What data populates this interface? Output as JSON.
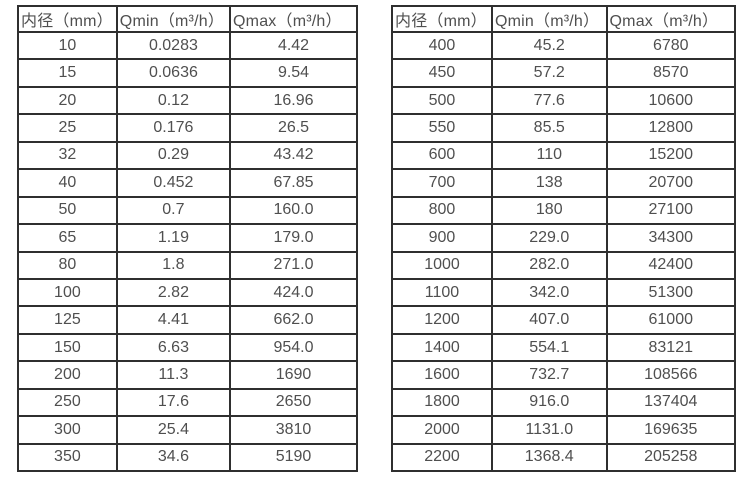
{
  "page": {
    "background": "#ffffff",
    "border_color": "#2f2f2f",
    "text_color": "#4f4f4f"
  },
  "tables": [
    {
      "name": "flow-spec-small-diameters",
      "headers": [
        "内径（mm）",
        "Qmin（m³/h）",
        "Qmax（m³/h）"
      ],
      "rows": [
        [
          "10",
          "0.0283",
          "4.42"
        ],
        [
          "15",
          "0.0636",
          "9.54"
        ],
        [
          "20",
          "0.12",
          "16.96"
        ],
        [
          "25",
          "0.176",
          "26.5"
        ],
        [
          "32",
          "0.29",
          "43.42"
        ],
        [
          "40",
          "0.452",
          "67.85"
        ],
        [
          "50",
          "0.7",
          "160.0"
        ],
        [
          "65",
          "1.19",
          "179.0"
        ],
        [
          "80",
          "1.8",
          "271.0"
        ],
        [
          "100",
          "2.82",
          "424.0"
        ],
        [
          "125",
          "4.41",
          "662.0"
        ],
        [
          "150",
          "6.63",
          "954.0"
        ],
        [
          "200",
          "11.3",
          "1690"
        ],
        [
          "250",
          "17.6",
          "2650"
        ],
        [
          "300",
          "25.4",
          "3810"
        ],
        [
          "350",
          "34.6",
          "5190"
        ]
      ]
    },
    {
      "name": "flow-spec-large-diameters",
      "headers": [
        "内径（mm）",
        "Qmin（m³/h）",
        "Qmax（m³/h）"
      ],
      "rows": [
        [
          "400",
          "45.2",
          "6780"
        ],
        [
          "450",
          "57.2",
          "8570"
        ],
        [
          "500",
          "77.6",
          "10600"
        ],
        [
          "550",
          "85.5",
          "12800"
        ],
        [
          "600",
          "110",
          "15200"
        ],
        [
          "700",
          "138",
          "20700"
        ],
        [
          "800",
          "180",
          "27100"
        ],
        [
          "900",
          "229.0",
          "34300"
        ],
        [
          "1000",
          "282.0",
          "42400"
        ],
        [
          "1100",
          "342.0",
          "51300"
        ],
        [
          "1200",
          "407.0",
          "61000"
        ],
        [
          "1400",
          "554.1",
          "83121"
        ],
        [
          "1600",
          "732.7",
          "108566"
        ],
        [
          "1800",
          "916.0",
          "137404"
        ],
        [
          "2000",
          "1131.0",
          "169635"
        ],
        [
          "2200",
          "1368.4",
          "205258"
        ]
      ]
    }
  ]
}
